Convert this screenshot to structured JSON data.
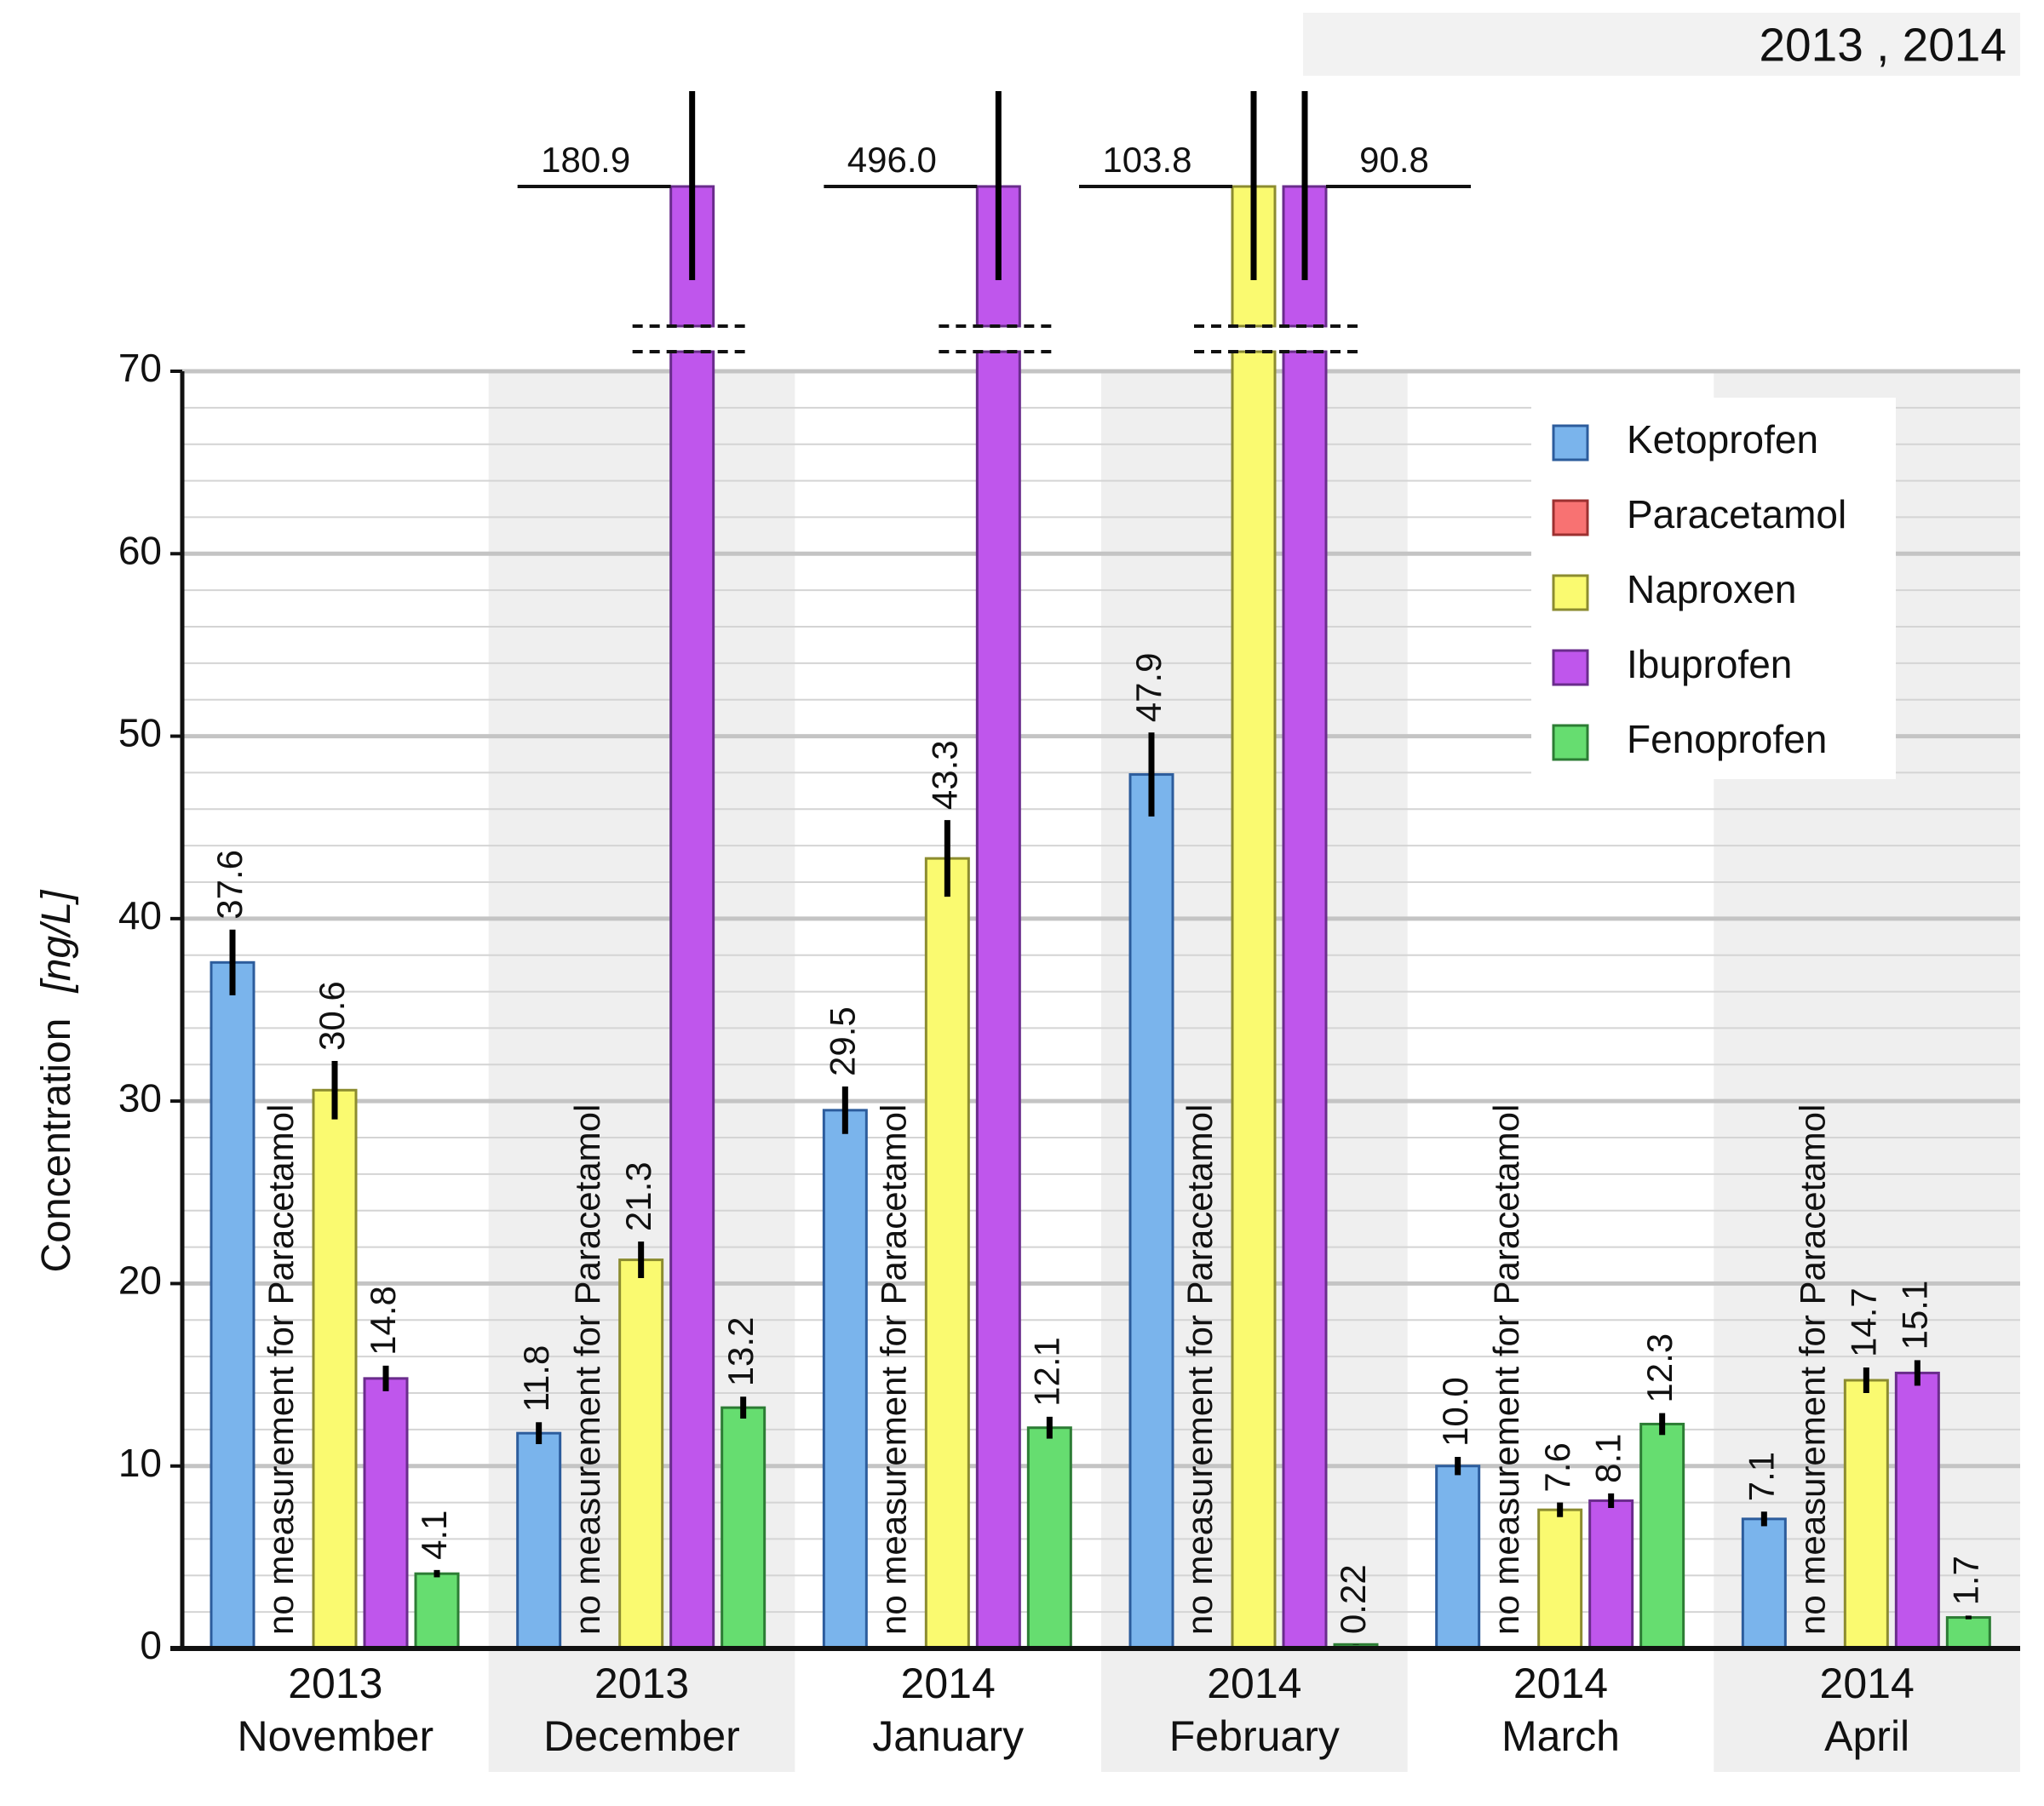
{
  "chart_data": {
    "type": "bar",
    "header_note": "2013 , 2014",
    "ylabel": "Concentration",
    "yunit": "[ng/L]",
    "categories": [
      [
        "2013",
        "November"
      ],
      [
        "2013",
        "December"
      ],
      [
        "2014",
        "January"
      ],
      [
        "2014",
        "February"
      ],
      [
        "2014",
        "March"
      ],
      [
        "2014",
        "April"
      ]
    ],
    "annotation": "no measurement for Paracetamol",
    "series": [
      {
        "name": "Ketoprofen",
        "color": "#7ab4ec",
        "stroke": "#2c5c9c",
        "values": [
          37.6,
          11.8,
          29.5,
          47.9,
          10.0,
          7.1
        ],
        "value_labels": [
          "37.6",
          "11.8",
          "29.5",
          "47.9",
          "10.0",
          "7.1"
        ],
        "errors": [
          1.8,
          0.6,
          1.3,
          2.3,
          0.5,
          0.4
        ]
      },
      {
        "name": "Paracetamol",
        "color": "#f87272",
        "stroke": "#9c3030",
        "values": [
          null,
          null,
          null,
          null,
          null,
          null
        ]
      },
      {
        "name": "Naproxen",
        "color": "#fafa70",
        "stroke": "#8c8c30",
        "values": [
          30.6,
          21.3,
          43.3,
          103.8,
          7.6,
          14.7
        ],
        "value_labels": [
          "30.6",
          "21.3",
          "43.3",
          "103.8",
          "7.6",
          "14.7"
        ],
        "errors": [
          1.6,
          1.0,
          2.1,
          5.0,
          0.4,
          0.7
        ]
      },
      {
        "name": "Ibuprofen",
        "color": "#bf56ec",
        "stroke": "#6a2c8c",
        "values": [
          14.8,
          180.9,
          496.0,
          90.8,
          8.1,
          15.1
        ],
        "value_labels": [
          "14.8",
          "180.9",
          "496.0",
          "90.8",
          "8.1",
          "15.1"
        ],
        "errors": [
          0.7,
          9.0,
          25.0,
          4.5,
          0.4,
          0.7
        ]
      },
      {
        "name": "Fenoprofen",
        "color": "#66dd70",
        "stroke": "#2c7c34",
        "values": [
          4.1,
          13.2,
          12.1,
          0.22,
          12.3,
          1.7
        ],
        "value_labels": [
          "4.1",
          "13.2",
          "12.1",
          "0.22",
          "12.3",
          "1.7"
        ],
        "errors": [
          0.2,
          0.6,
          0.6,
          0.01,
          0.6,
          0.1
        ]
      }
    ],
    "ylim": [
      0,
      70
    ],
    "yticks": [
      0,
      10,
      20,
      30,
      40,
      50,
      60,
      70
    ],
    "grid": true,
    "legend": "upper right"
  }
}
